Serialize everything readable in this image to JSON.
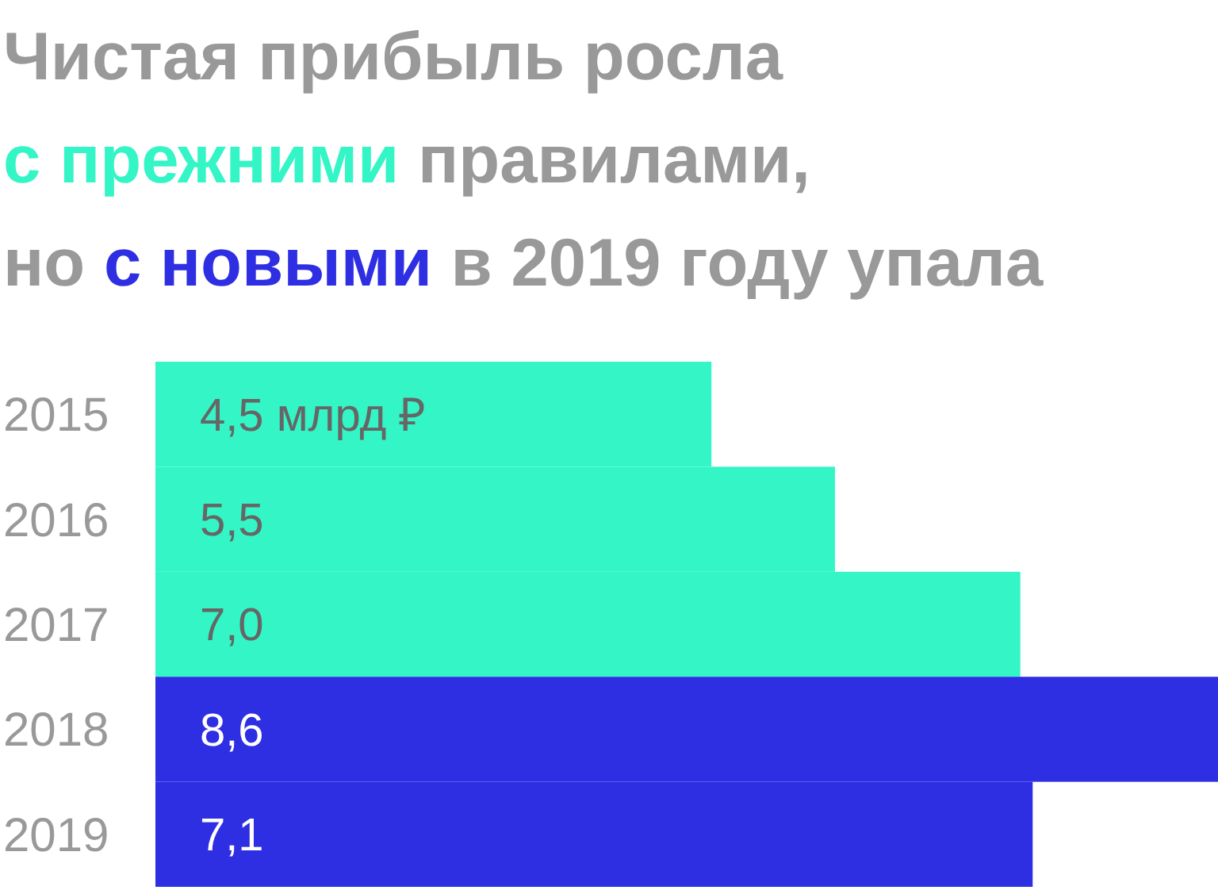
{
  "chart_data": {
    "type": "bar",
    "orientation": "horizontal",
    "title": "Чистая прибыль росла",
    "annotations": [
      "правилами,",
      "но",
      "в 2019 году упала"
    ],
    "categories": [
      "2015",
      "2016",
      "2017",
      "2018",
      "2019"
    ],
    "series": [
      {
        "name": "с прежними",
        "color": "#33f5c5",
        "values": [
          4.5,
          5.5,
          7.0,
          null,
          null
        ],
        "value_labels": [
          "4,5 млрд ₽",
          "5,5",
          "7,0",
          null,
          null
        ]
      },
      {
        "name": "с новыми",
        "color": "#2e2ee3",
        "values": [
          null,
          null,
          null,
          8.6,
          7.1
        ],
        "value_labels": [
          null,
          null,
          null,
          "8,6",
          "7,1"
        ]
      }
    ]
  }
}
